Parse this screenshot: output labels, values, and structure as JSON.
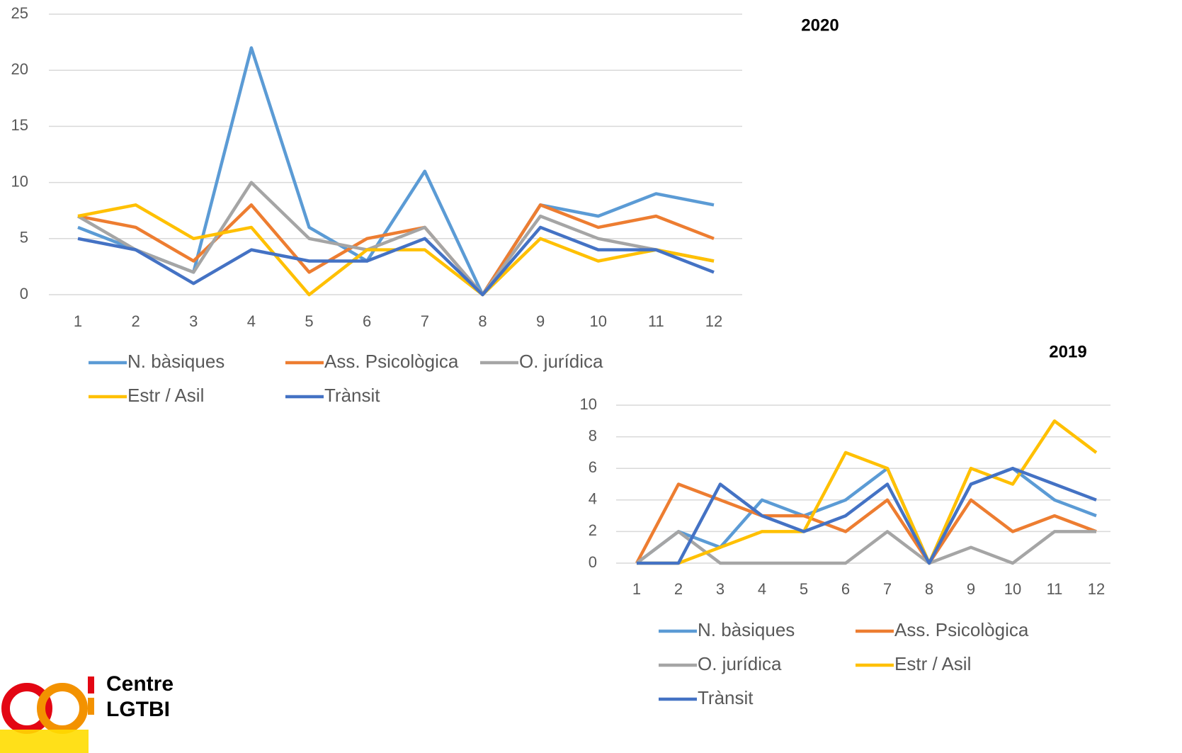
{
  "chart_data": [
    {
      "type": "line",
      "title": "2020",
      "categories": [
        "1",
        "2",
        "3",
        "4",
        "5",
        "6",
        "7",
        "8",
        "9",
        "10",
        "11",
        "12"
      ],
      "ylim": [
        0,
        25
      ],
      "yticks": [
        0,
        5,
        10,
        15,
        20,
        25
      ],
      "grid": true,
      "legend": "bottom",
      "series": [
        {
          "name": "N. bàsiques",
          "color": "#5b9bd5",
          "values": [
            6,
            4,
            2,
            22,
            6,
            3,
            11,
            0,
            8,
            7,
            9,
            8
          ]
        },
        {
          "name": "Ass. Psicològica",
          "color": "#ed7d31",
          "values": [
            7,
            6,
            3,
            8,
            2,
            5,
            6,
            0,
            8,
            6,
            7,
            5
          ]
        },
        {
          "name": "O. jurídica",
          "color": "#a5a5a5",
          "values": [
            7,
            4,
            2,
            10,
            5,
            4,
            6,
            0,
            7,
            5,
            4,
            3
          ]
        },
        {
          "name": "Estr / Asil",
          "color": "#ffc000",
          "values": [
            7,
            8,
            5,
            6,
            0,
            4,
            4,
            0,
            5,
            3,
            4,
            3
          ]
        },
        {
          "name": "Trànsit",
          "color": "#4472c4",
          "values": [
            5,
            4,
            1,
            4,
            3,
            3,
            5,
            0,
            6,
            4,
            4,
            2
          ]
        }
      ]
    },
    {
      "type": "line",
      "title": "2019",
      "categories": [
        "1",
        "2",
        "3",
        "4",
        "5",
        "6",
        "7",
        "8",
        "9",
        "10",
        "11",
        "12"
      ],
      "ylim": [
        0,
        10
      ],
      "yticks": [
        0,
        2,
        4,
        6,
        8,
        10
      ],
      "grid": true,
      "legend": "bottom",
      "series": [
        {
          "name": "N. bàsiques",
          "color": "#5b9bd5",
          "values": [
            0,
            2,
            1,
            4,
            3,
            4,
            6,
            0,
            5,
            6,
            4,
            3
          ]
        },
        {
          "name": "Ass. Psicològica",
          "color": "#ed7d31",
          "values": [
            0,
            5,
            4,
            3,
            3,
            2,
            4,
            0,
            4,
            2,
            3,
            2
          ]
        },
        {
          "name": "O. jurídica",
          "color": "#a5a5a5",
          "values": [
            0,
            2,
            0,
            0,
            0,
            0,
            2,
            0,
            1,
            0,
            2,
            2
          ]
        },
        {
          "name": "Estr / Asil",
          "color": "#ffc000",
          "values": [
            0,
            0,
            1,
            2,
            2,
            7,
            6,
            0,
            6,
            5,
            9,
            7
          ]
        },
        {
          "name": "Trànsit",
          "color": "#4472c4",
          "values": [
            0,
            0,
            5,
            3,
            2,
            3,
            5,
            0,
            5,
            6,
            5,
            4
          ]
        }
      ]
    }
  ],
  "logo": {
    "line1": "Centre",
    "line2": "LGTBI"
  }
}
